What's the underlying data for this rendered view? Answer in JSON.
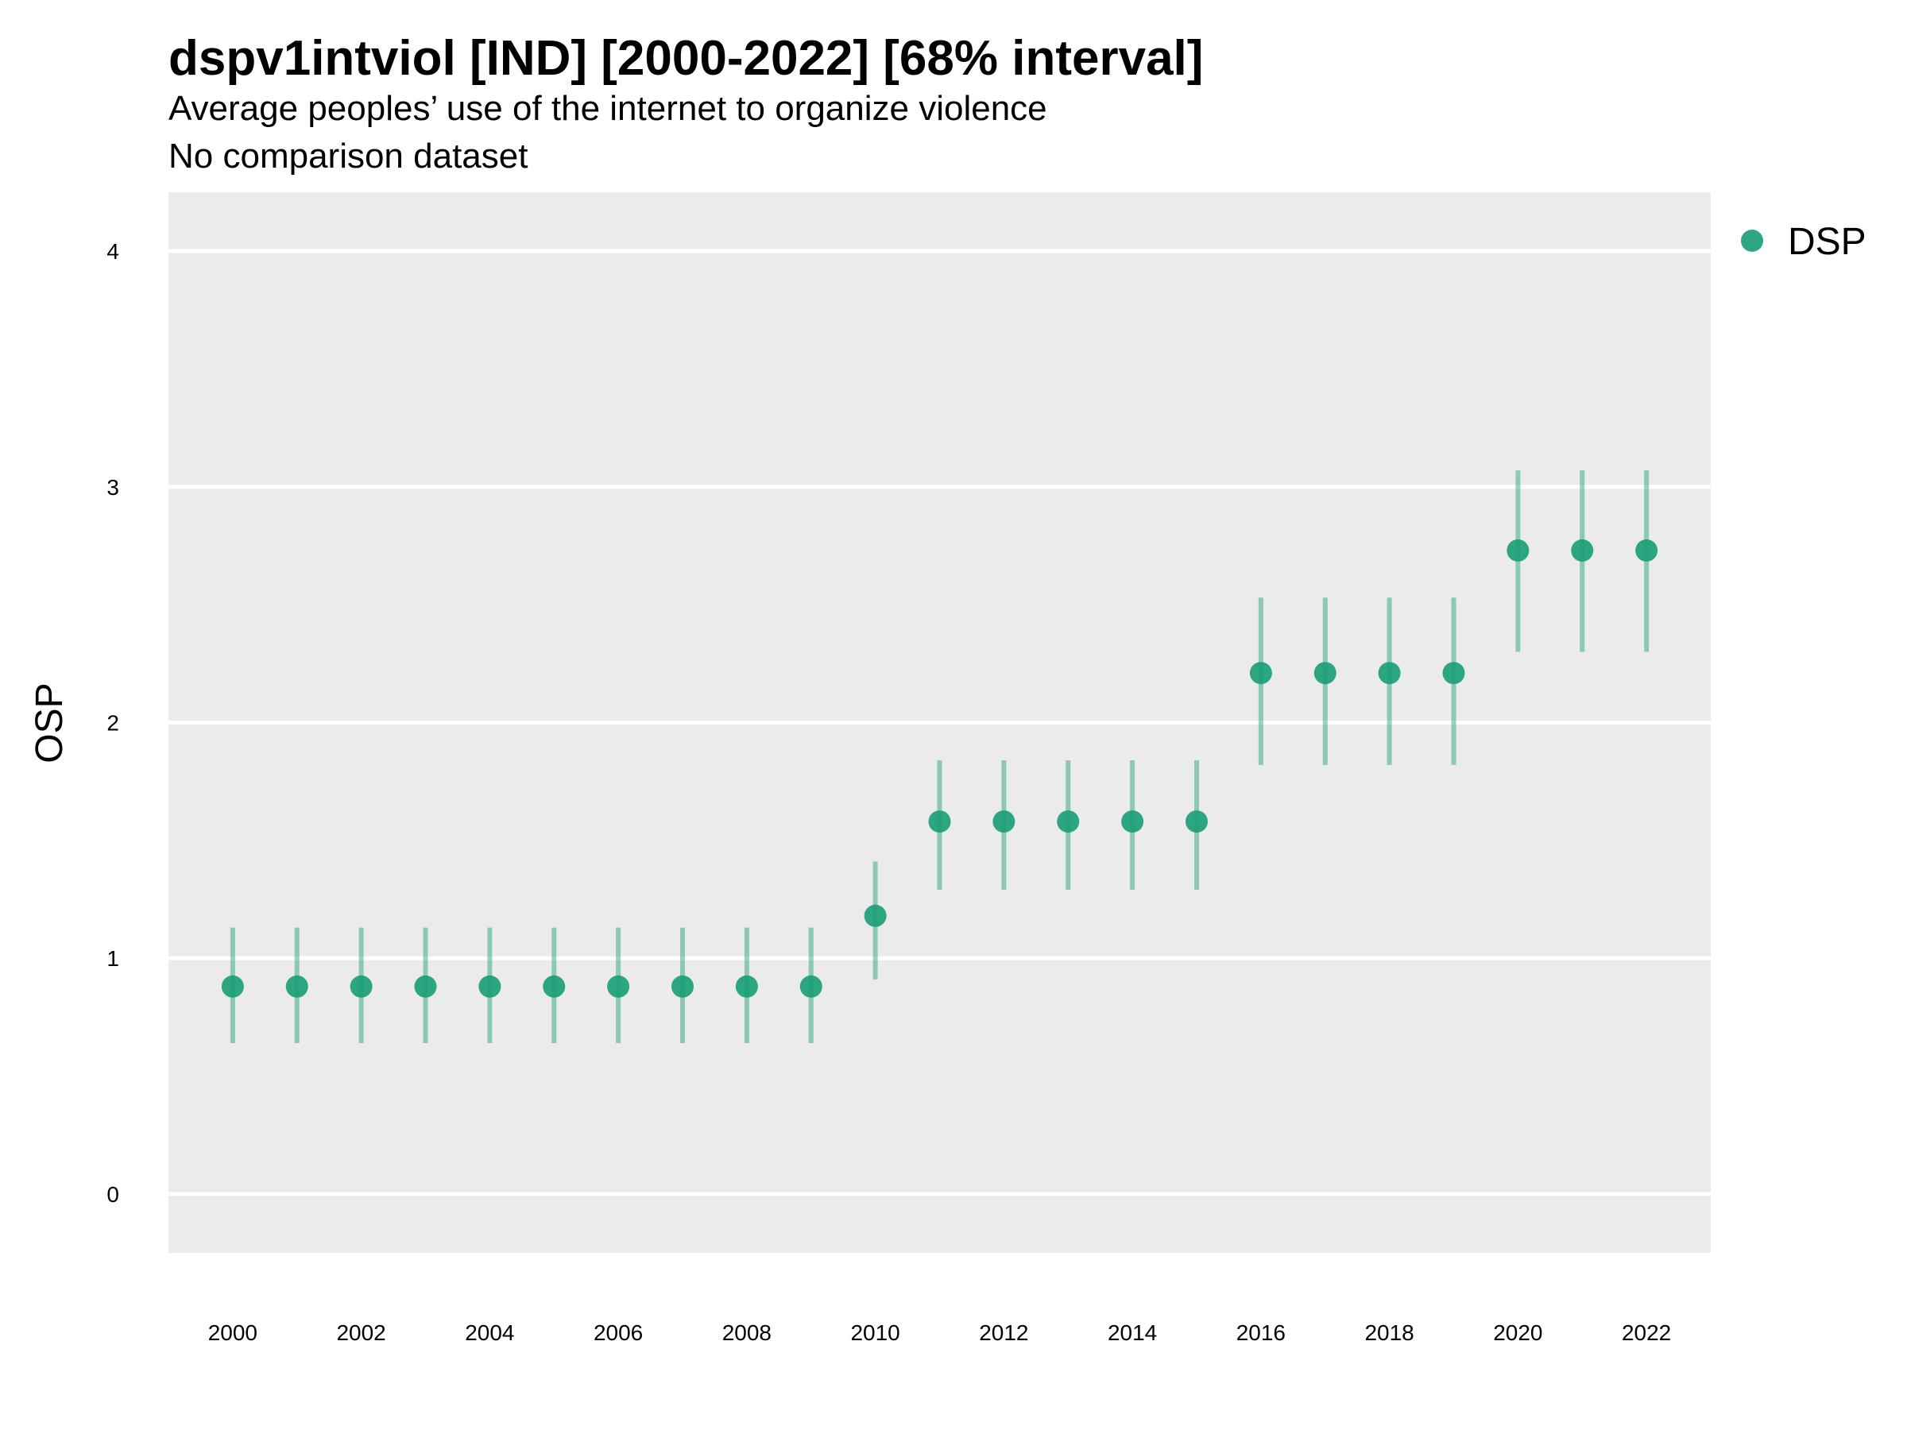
{
  "chart_data": {
    "type": "scatter",
    "title": "dspv1intviol [IND] [2000-2022] [68% interval]",
    "subtitle": "Average peoples’ use of the internet to organize violence",
    "subtitle2": "No comparison dataset",
    "xlabel": "",
    "ylabel": "OSP",
    "xlim": [
      1999,
      2023
    ],
    "ylim": [
      -0.25,
      4.25
    ],
    "x_ticks": [
      "2000",
      "2002",
      "2004",
      "2006",
      "2008",
      "2010",
      "2012",
      "2014",
      "2016",
      "2018",
      "2020",
      "2022"
    ],
    "y_ticks": [
      "0",
      "1",
      "2",
      "3",
      "4"
    ],
    "grid": true,
    "legend_position": "top-right",
    "series": [
      {
        "name": "DSP",
        "color": "#1b9e77",
        "x": [
          2000,
          2001,
          2002,
          2003,
          2004,
          2005,
          2006,
          2007,
          2008,
          2009,
          2010,
          2011,
          2012,
          2013,
          2014,
          2015,
          2016,
          2017,
          2018,
          2019,
          2020,
          2021,
          2022
        ],
        "y": [
          0.88,
          0.88,
          0.88,
          0.88,
          0.88,
          0.88,
          0.88,
          0.88,
          0.88,
          0.88,
          1.18,
          1.58,
          1.58,
          1.58,
          1.58,
          1.58,
          2.21,
          2.21,
          2.21,
          2.21,
          2.73,
          2.73,
          2.73
        ],
        "lower": [
          0.64,
          0.64,
          0.64,
          0.64,
          0.64,
          0.64,
          0.64,
          0.64,
          0.64,
          0.64,
          0.91,
          1.29,
          1.29,
          1.29,
          1.29,
          1.29,
          1.82,
          1.82,
          1.82,
          1.82,
          2.3,
          2.3,
          2.3
        ],
        "upper": [
          1.13,
          1.13,
          1.13,
          1.13,
          1.13,
          1.13,
          1.13,
          1.13,
          1.13,
          1.13,
          1.41,
          1.84,
          1.84,
          1.84,
          1.84,
          1.84,
          2.53,
          2.53,
          2.53,
          2.53,
          3.07,
          3.07,
          3.07
        ]
      }
    ]
  }
}
